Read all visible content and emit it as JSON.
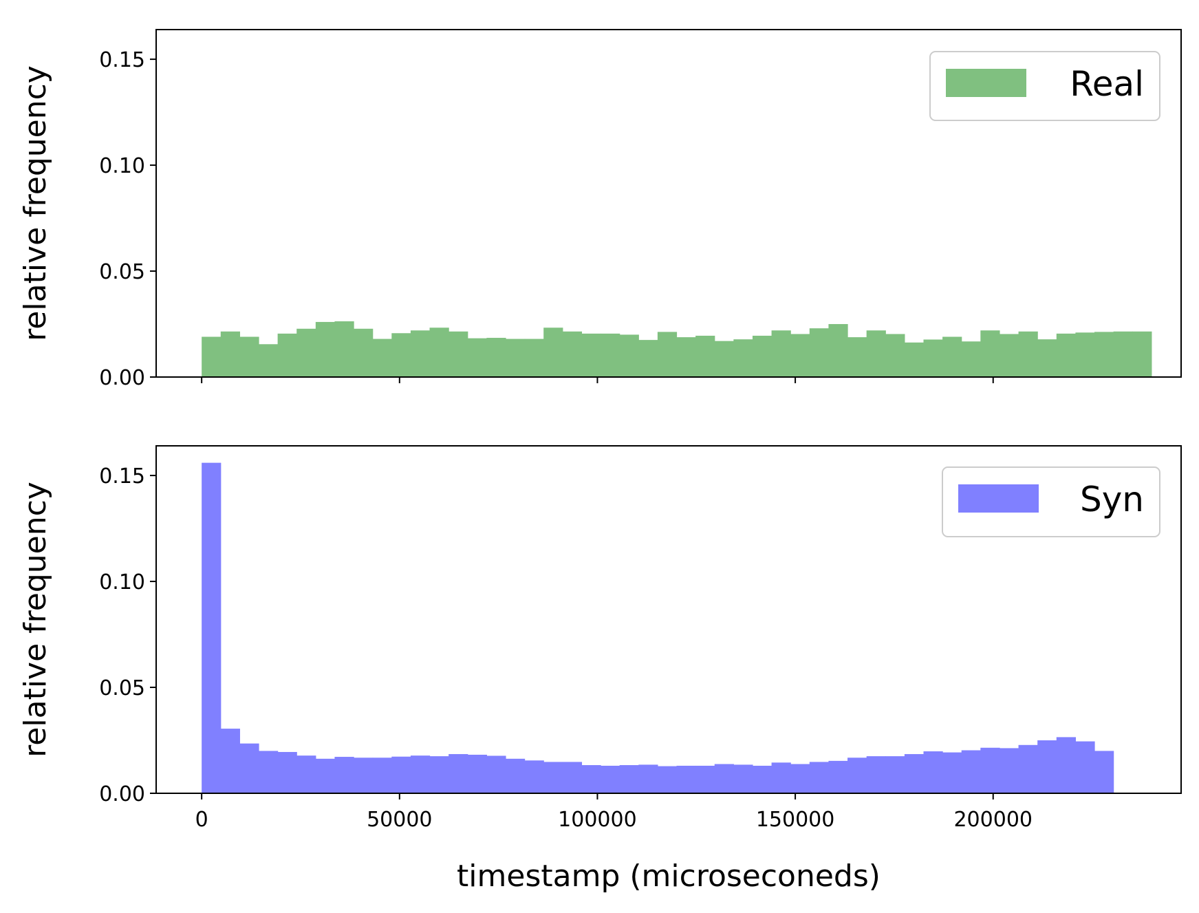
{
  "colors": {
    "real": "#80c080",
    "syn": "#8080ff",
    "legend_border": "#cccccc"
  },
  "chart_data": [
    {
      "type": "bar",
      "legend": "Real",
      "legend_position": "top-right",
      "ylabel": "relative frequency",
      "xlabel": "",
      "xlim": [
        -11500,
        247500
      ],
      "ylim": [
        0,
        0.164
      ],
      "yticks": [
        "0.00",
        "0.05",
        "0.10",
        "0.15"
      ],
      "xticks_labels_shown": false,
      "bin_start": 0,
      "bin_width": 4800,
      "values": [
        0.019,
        0.0215,
        0.019,
        0.0155,
        0.0205,
        0.0228,
        0.026,
        0.0263,
        0.0228,
        0.018,
        0.0207,
        0.022,
        0.0233,
        0.0215,
        0.0183,
        0.0185,
        0.018,
        0.018,
        0.0233,
        0.0215,
        0.0205,
        0.0205,
        0.02,
        0.0175,
        0.0213,
        0.0188,
        0.0195,
        0.017,
        0.0178,
        0.0195,
        0.022,
        0.0203,
        0.023,
        0.025,
        0.0188,
        0.022,
        0.0203,
        0.0163,
        0.0177,
        0.019,
        0.0168,
        0.022,
        0.0203,
        0.0215,
        0.0178,
        0.0205,
        0.021,
        0.0213,
        0.0215,
        0.0215
      ]
    },
    {
      "type": "bar",
      "legend": "Syn",
      "legend_position": "top-right",
      "ylabel": "relative frequency",
      "xlabel": "timestamp (microseconeds)",
      "xlim": [
        -11500,
        247500
      ],
      "ylim": [
        0,
        0.164
      ],
      "yticks": [
        "0.00",
        "0.05",
        "0.10",
        "0.15"
      ],
      "xticks": [
        "0",
        "50000",
        "100000",
        "150000",
        "200000"
      ],
      "bin_start": 0,
      "bin_width": 4800,
      "values": [
        0.156,
        0.0305,
        0.0235,
        0.02,
        0.0195,
        0.0178,
        0.0163,
        0.0172,
        0.0168,
        0.0168,
        0.0173,
        0.0178,
        0.0175,
        0.0185,
        0.0182,
        0.0177,
        0.0163,
        0.0155,
        0.0148,
        0.0148,
        0.0133,
        0.013,
        0.0133,
        0.0135,
        0.0128,
        0.013,
        0.013,
        0.0138,
        0.0135,
        0.013,
        0.0145,
        0.0138,
        0.0148,
        0.0153,
        0.0168,
        0.0175,
        0.0175,
        0.0185,
        0.0198,
        0.0193,
        0.0203,
        0.0215,
        0.0213,
        0.0228,
        0.025,
        0.0265,
        0.0245,
        0.02
      ]
    }
  ]
}
